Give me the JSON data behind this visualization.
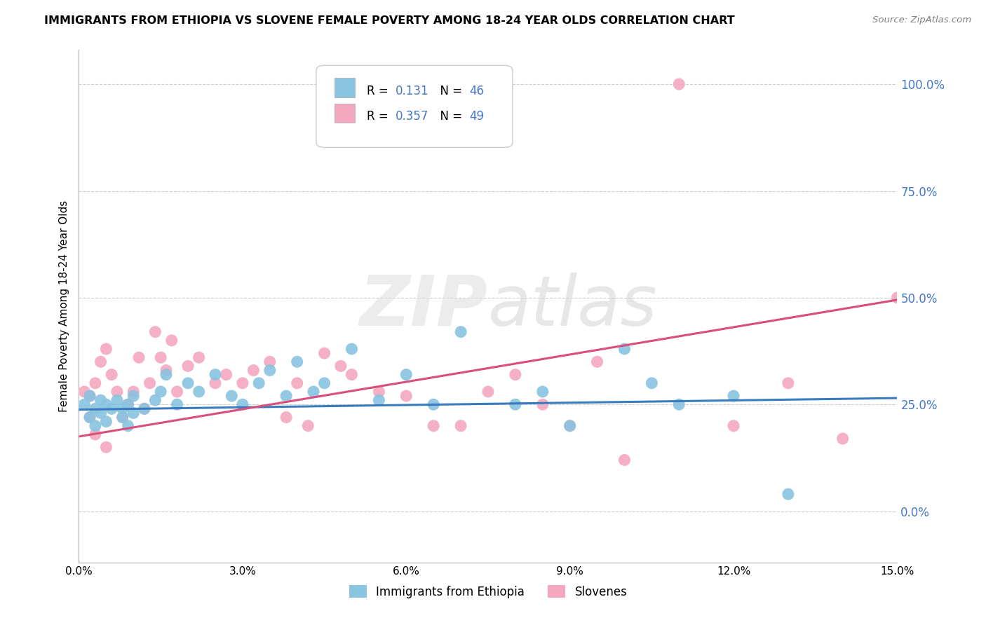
{
  "title": "IMMIGRANTS FROM ETHIOPIA VS SLOVENE FEMALE POVERTY AMONG 18-24 YEAR OLDS CORRELATION CHART",
  "source": "Source: ZipAtlas.com",
  "ylabel": "Female Poverty Among 18-24 Year Olds",
  "xlim": [
    0.0,
    0.15
  ],
  "ylim": [
    -0.12,
    1.08
  ],
  "ytick_positions": [
    0.0,
    0.25,
    0.5,
    0.75,
    1.0
  ],
  "ytick_labels": [
    "0.0%",
    "25.0%",
    "50.0%",
    "75.0%",
    "100.0%"
  ],
  "xtick_positions": [
    0.0,
    0.03,
    0.06,
    0.09,
    0.12,
    0.15
  ],
  "xtick_labels": [
    "0.0%",
    "3.0%",
    "6.0%",
    "9.0%",
    "12.0%",
    "15.0%"
  ],
  "blue_color": "#89c4e0",
  "pink_color": "#f4a8c0",
  "blue_line_color": "#3a7abf",
  "pink_line_color": "#d94f7a",
  "tick_label_color": "#4477cc",
  "legend_label1": "Immigrants from Ethiopia",
  "legend_label2": "Slovenes",
  "watermark_zip": "ZIP",
  "watermark_atlas": "atlas",
  "background_color": "#ffffff",
  "grid_color": "#cccccc",
  "blue_scatter_x": [
    0.001,
    0.002,
    0.002,
    0.003,
    0.003,
    0.004,
    0.004,
    0.005,
    0.005,
    0.006,
    0.007,
    0.008,
    0.008,
    0.009,
    0.009,
    0.01,
    0.01,
    0.012,
    0.014,
    0.015,
    0.016,
    0.018,
    0.02,
    0.022,
    0.025,
    0.028,
    0.03,
    0.033,
    0.035,
    0.038,
    0.04,
    0.043,
    0.045,
    0.05,
    0.055,
    0.06,
    0.065,
    0.07,
    0.08,
    0.085,
    0.09,
    0.1,
    0.105,
    0.11,
    0.12,
    0.13
  ],
  "blue_scatter_y": [
    0.25,
    0.22,
    0.27,
    0.24,
    0.2,
    0.26,
    0.23,
    0.25,
    0.21,
    0.24,
    0.26,
    0.22,
    0.24,
    0.25,
    0.2,
    0.23,
    0.27,
    0.24,
    0.26,
    0.28,
    0.32,
    0.25,
    0.3,
    0.28,
    0.32,
    0.27,
    0.25,
    0.3,
    0.33,
    0.27,
    0.35,
    0.28,
    0.3,
    0.38,
    0.26,
    0.32,
    0.25,
    0.42,
    0.25,
    0.28,
    0.2,
    0.38,
    0.3,
    0.25,
    0.27,
    0.04
  ],
  "pink_scatter_x": [
    0.001,
    0.002,
    0.002,
    0.003,
    0.003,
    0.004,
    0.005,
    0.005,
    0.006,
    0.007,
    0.008,
    0.009,
    0.01,
    0.011,
    0.012,
    0.013,
    0.014,
    0.015,
    0.016,
    0.017,
    0.018,
    0.02,
    0.022,
    0.025,
    0.027,
    0.03,
    0.032,
    0.035,
    0.038,
    0.04,
    0.042,
    0.045,
    0.048,
    0.05,
    0.055,
    0.06,
    0.065,
    0.07,
    0.075,
    0.08,
    0.085,
    0.09,
    0.095,
    0.1,
    0.11,
    0.12,
    0.13,
    0.14,
    0.15
  ],
  "pink_scatter_y": [
    0.28,
    0.22,
    0.27,
    0.3,
    0.18,
    0.35,
    0.38,
    0.15,
    0.32,
    0.28,
    0.22,
    0.25,
    0.28,
    0.36,
    0.24,
    0.3,
    0.42,
    0.36,
    0.33,
    0.4,
    0.28,
    0.34,
    0.36,
    0.3,
    0.32,
    0.3,
    0.33,
    0.35,
    0.22,
    0.3,
    0.2,
    0.37,
    0.34,
    0.32,
    0.28,
    0.27,
    0.2,
    0.2,
    0.28,
    0.32,
    0.25,
    0.2,
    0.35,
    0.12,
    1.0,
    0.2,
    0.3,
    0.17,
    0.5
  ],
  "blue_trend_x": [
    0.0,
    0.15
  ],
  "blue_trend_y": [
    0.238,
    0.265
  ],
  "pink_trend_x": [
    0.0,
    0.15
  ],
  "pink_trend_y": [
    0.175,
    0.495
  ]
}
